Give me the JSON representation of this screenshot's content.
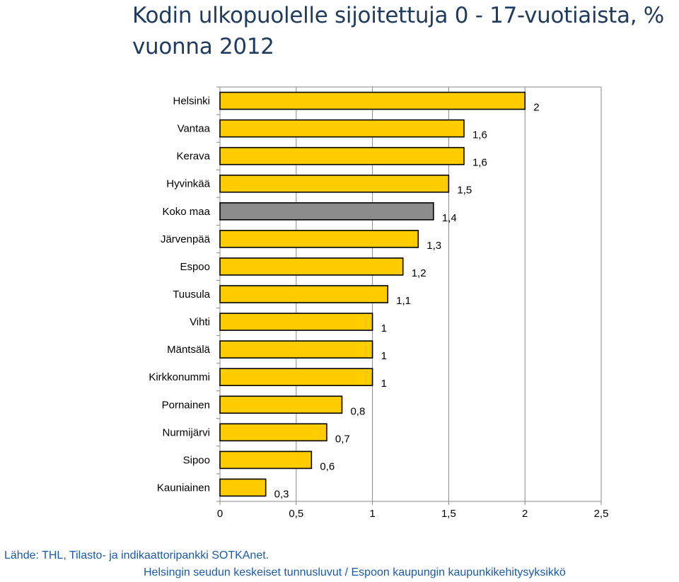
{
  "title": "Kodin ulkopuolelle sijoitettuja 0 - 17-vuotiaista, % vuonna 2012",
  "source": "Lähde: THL, Tilasto- ja indikaattoripankki SOTKAnet.",
  "footer": "Helsingin seudun keskeiset tunnusluvut / Espoon kaupungin kaupunkikehitysyksikkö",
  "colors": {
    "bar": "#FFCC00",
    "highlight_bar": "#8C8C8C",
    "bar_border": "#000000",
    "axis": "#888888",
    "title": "#1f3b5e",
    "source_text": "#1a5aa8"
  },
  "chart_data": {
    "type": "bar",
    "orientation": "horizontal",
    "title": "Kodin ulkopuolelle sijoitettuja 0 - 17-vuotiaista, % vuonna 2012",
    "categories": [
      "Helsinki",
      "Vantaa",
      "Kerava",
      "Hyvinkää",
      "Koko maa",
      "Järvenpää",
      "Espoo",
      "Tuusula",
      "Vihti",
      "Mäntsälä",
      "Kirkkonummi",
      "Pornainen",
      "Nurmijärvi",
      "Sipoo",
      "Kauniainen"
    ],
    "values": [
      2,
      1.6,
      1.6,
      1.5,
      1.4,
      1.3,
      1.2,
      1.1,
      1,
      1,
      1,
      0.8,
      0.7,
      0.6,
      0.3
    ],
    "value_labels": [
      "2",
      "1,6",
      "1,6",
      "1,5",
      "1,4",
      "1,3",
      "1,2",
      "1,1",
      "1",
      "1",
      "1",
      "0,8",
      "0,7",
      "0,6",
      "0,3"
    ],
    "highlight_category": "Koko maa",
    "xlim": [
      0,
      2.5
    ],
    "xticks": [
      0,
      0.5,
      1,
      1.5,
      2,
      2.5
    ],
    "xtick_labels": [
      "0",
      "0,5",
      "1",
      "1,5",
      "2",
      "2,5"
    ],
    "xlabel": "",
    "ylabel": "",
    "grid": "vertical major gridlines",
    "legend": "none"
  }
}
